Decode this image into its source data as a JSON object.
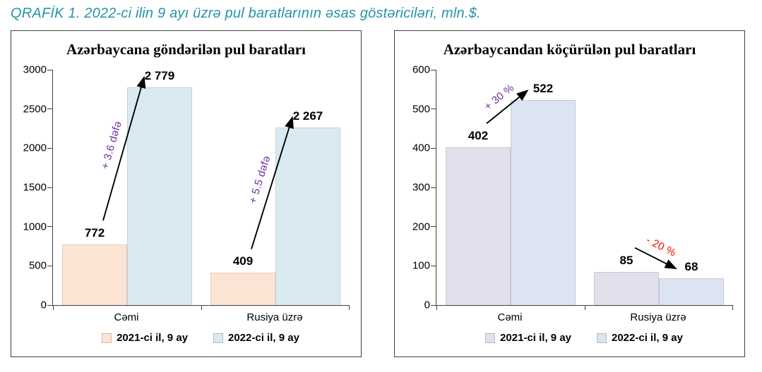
{
  "page_title": "QRAFİK 1. 2022-ci ilin 9 ayı üzrə pul baratlarının əsas göstəriciləri, mln.$.",
  "accent_color": "#2793A9",
  "chart_data": [
    {
      "type": "bar",
      "title": "Azərbaycana göndərilən pul baratları",
      "categories": [
        "Cəmi",
        "Rusiya üzrə"
      ],
      "series": [
        {
          "name": "2021-ci il, 9 ay",
          "color": "#FCE4D4",
          "values": [
            772,
            409
          ],
          "labels": [
            "772",
            "409"
          ]
        },
        {
          "name": "2022-ci il, 9 ay",
          "color": "#DAEAF1",
          "values": [
            2779,
            2267
          ],
          "labels": [
            "2 779",
            "2 267"
          ]
        }
      ],
      "xlabel": "",
      "ylabel": "",
      "ylim": [
        0,
        3000
      ],
      "ytick_step": 500,
      "yticks": [
        "0",
        "500",
        "1000",
        "1500",
        "2000",
        "2500",
        "3000"
      ],
      "grid": false,
      "legend_position": "bottom",
      "annotations": [
        {
          "text": "+ 3.6 dəfə",
          "color": "#7030A0",
          "group": 0
        },
        {
          "text": "+ 5.5 dəfə",
          "color": "#7030A0",
          "group": 1
        }
      ]
    },
    {
      "type": "bar",
      "title": "Azərbaycandan köçürülən pul baratları",
      "categories": [
        "Cəmi",
        "Rusiya üzrə"
      ],
      "series": [
        {
          "name": "2021-ci il, 9 ay",
          "color": "#E4DFEC",
          "values": [
            402,
            85
          ],
          "labels": [
            "402",
            "85"
          ]
        },
        {
          "name": "2022-ci il, 9 ay",
          "color": "#DCE3F1",
          "values": [
            522,
            68
          ],
          "labels": [
            "522",
            "68"
          ]
        }
      ],
      "xlabel": "",
      "ylabel": "",
      "ylim": [
        0,
        600
      ],
      "ytick_step": 100,
      "yticks": [
        "0",
        "100",
        "200",
        "300",
        "400",
        "500",
        "600"
      ],
      "grid": false,
      "legend_position": "bottom",
      "annotations": [
        {
          "text": "+ 30 %",
          "color": "#7030A0",
          "group": 0
        },
        {
          "text": "- 20 %",
          "color": "#FF0000",
          "group": 1
        }
      ]
    }
  ]
}
